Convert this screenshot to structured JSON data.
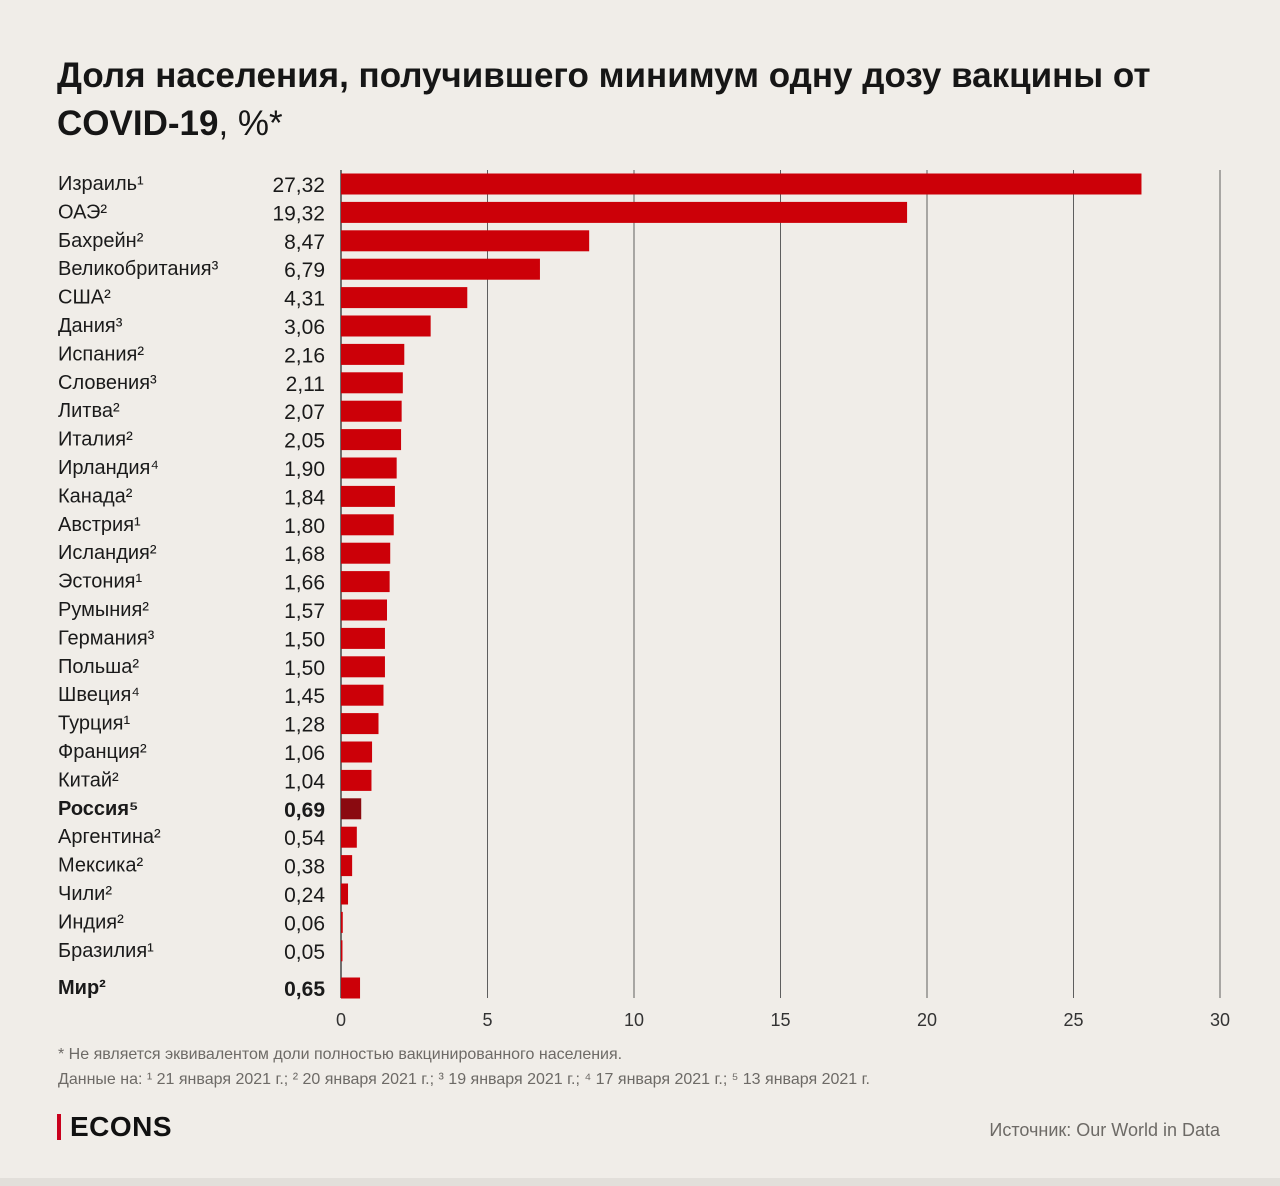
{
  "title": {
    "main": "Доля населения, получившего минимум одну дозу вакцины от COVID-19",
    "unit": ", %*"
  },
  "chart_data": {
    "type": "bar",
    "orientation": "horizontal",
    "title": "Доля населения, получившего минимум одну дозу вакцины от COVID-19, %*",
    "categories": [
      "Израиль¹",
      "ОАЭ²",
      "Бахрейн²",
      "Великобритания³",
      "США²",
      "Дания³",
      "Испания²",
      "Словения³",
      "Литва²",
      "Италия²",
      "Ирландия⁴",
      "Канада²",
      "Австрия¹",
      "Исландия²",
      "Эстония¹",
      "Румыния²",
      "Германия³",
      "Польша²",
      "Швеция⁴",
      "Турция¹",
      "Франция²",
      "Китай²",
      "Россия⁵",
      "Аргентина²",
      "Мексика²",
      "Чили²",
      "Индия²",
      "Бразилия¹",
      "Мир²"
    ],
    "values": [
      27.32,
      19.32,
      8.47,
      6.79,
      4.31,
      3.06,
      2.16,
      2.11,
      2.07,
      2.05,
      1.9,
      1.84,
      1.8,
      1.68,
      1.66,
      1.57,
      1.5,
      1.5,
      1.45,
      1.28,
      1.06,
      1.04,
      0.69,
      0.54,
      0.38,
      0.24,
      0.06,
      0.05,
      0.65
    ],
    "value_labels": [
      "27,32",
      "19,32",
      "8,47",
      "6,79",
      "4,31",
      "3,06",
      "2,16",
      "2,11",
      "2,07",
      "2,05",
      "1,90",
      "1,84",
      "1,80",
      "1,68",
      "1,66",
      "1,57",
      "1,50",
      "1,50",
      "1,45",
      "1,28",
      "1,06",
      "1,04",
      "0,69",
      "0,54",
      "0,38",
      "0,24",
      "0,06",
      "0,05",
      "0,65"
    ],
    "highlight": [
      "Россия⁵",
      "Мир²"
    ],
    "xlim": [
      0,
      30
    ],
    "xticks": [
      0,
      5,
      10,
      15,
      20,
      25,
      30
    ],
    "grid": true,
    "xlabel": "",
    "ylabel": "",
    "colors": {
      "bar": "#cc0008",
      "highlight_bar": "#8a0a10",
      "grid": "#3a3a3a"
    }
  },
  "footnotes": {
    "note": "* Не является эквивалентом доли полностью вакцинированного населения.",
    "dates": "Данные на: ¹ 21 января 2021 г.; ² 20 января 2021 г.; ³ 19 января 2021 г.; ⁴ 17 января 2021 г.; ⁵ 13 января 2021 г."
  },
  "brand": {
    "name": "ECONS",
    "accent": "#c9001c"
  },
  "source": "Источник: Our World in Data"
}
